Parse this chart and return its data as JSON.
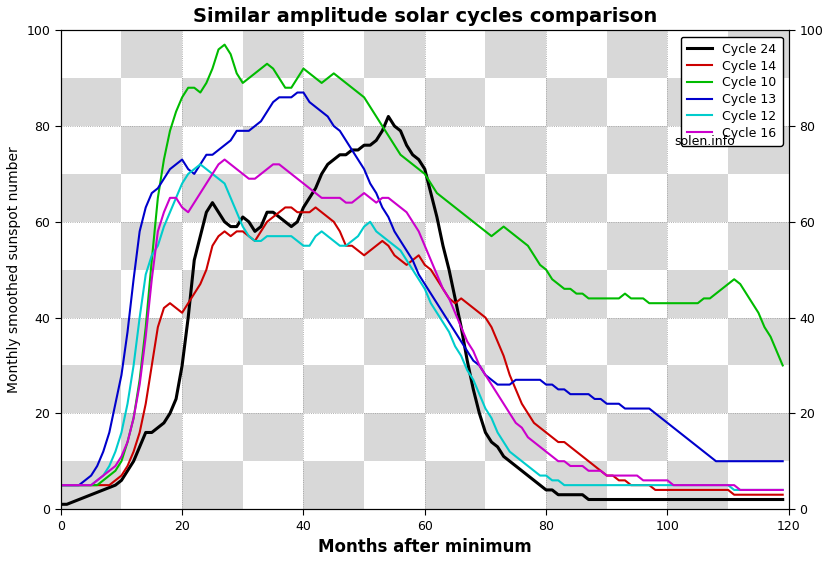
{
  "title": "Similar amplitude solar cycles comparison",
  "xlabel": "Months after minimum",
  "ylabel": "Monthly smoothed sunspot number",
  "xlim": [
    0,
    120
  ],
  "ylim": [
    0,
    100
  ],
  "xticks": [
    0,
    20,
    40,
    60,
    80,
    100,
    120
  ],
  "yticks": [
    0,
    20,
    40,
    60,
    80,
    100
  ],
  "watermark": "solen.info",
  "checker_light": "#ffffff",
  "checker_dark": "#d8d8d8",
  "grid_color": "#aaaaaa",
  "checker_nx": 12,
  "checker_ny": 10,
  "cycles": [
    {
      "name": "Cycle 24",
      "color": "#000000",
      "linewidth": 2.2,
      "data": [
        1,
        1,
        1.5,
        2,
        2.5,
        3,
        3.5,
        4,
        4.5,
        5,
        6,
        8,
        10,
        13,
        16,
        16,
        17,
        18,
        20,
        23,
        30,
        40,
        52,
        57,
        62,
        64,
        62,
        60,
        59,
        59,
        61,
        60,
        58,
        59,
        62,
        62,
        61,
        60,
        59,
        60,
        63,
        65,
        67,
        70,
        72,
        73,
        74,
        74,
        75,
        75,
        76,
        76,
        77,
        79,
        82,
        80,
        79,
        76,
        74,
        73,
        71,
        66,
        61,
        55,
        50,
        44,
        38,
        31,
        25,
        20,
        16,
        14,
        13,
        11,
        10,
        9,
        8,
        7,
        6,
        5,
        4,
        4,
        3,
        3,
        3,
        3,
        3,
        2,
        2,
        2,
        2,
        2,
        2,
        2,
        2,
        2,
        2,
        2,
        2,
        2,
        2,
        2,
        2,
        2,
        2,
        2,
        2,
        2,
        2,
        2,
        2,
        2,
        2,
        2,
        2,
        2,
        2,
        2,
        2,
        2
      ]
    },
    {
      "name": "Cycle 14",
      "color": "#cc0000",
      "linewidth": 1.5,
      "data": [
        5,
        5,
        5,
        5,
        5,
        5,
        5,
        5,
        5,
        6,
        7,
        9,
        12,
        16,
        22,
        30,
        38,
        42,
        43,
        42,
        41,
        43,
        45,
        47,
        50,
        55,
        57,
        58,
        57,
        58,
        58,
        57,
        56,
        58,
        60,
        61,
        62,
        63,
        63,
        62,
        62,
        62,
        63,
        62,
        61,
        60,
        58,
        55,
        55,
        54,
        53,
        54,
        55,
        56,
        55,
        53,
        52,
        51,
        52,
        53,
        51,
        50,
        48,
        46,
        44,
        43,
        44,
        43,
        42,
        41,
        40,
        38,
        35,
        32,
        28,
        25,
        22,
        20,
        18,
        17,
        16,
        15,
        14,
        14,
        13,
        12,
        11,
        10,
        9,
        8,
        7,
        7,
        6,
        6,
        5,
        5,
        5,
        5,
        4,
        4,
        4,
        4,
        4,
        4,
        4,
        4,
        4,
        4,
        4,
        4,
        4,
        3,
        3,
        3,
        3,
        3,
        3,
        3,
        3,
        3
      ]
    },
    {
      "name": "Cycle 10",
      "color": "#00bb00",
      "linewidth": 1.5,
      "data": [
        5,
        5,
        5,
        5,
        5,
        5,
        5,
        6,
        7,
        8,
        10,
        14,
        19,
        27,
        38,
        52,
        65,
        73,
        79,
        83,
        86,
        88,
        88,
        87,
        89,
        92,
        96,
        97,
        95,
        91,
        89,
        90,
        91,
        92,
        93,
        92,
        90,
        88,
        88,
        90,
        92,
        91,
        90,
        89,
        90,
        91,
        90,
        89,
        88,
        87,
        86,
        84,
        82,
        80,
        78,
        76,
        74,
        73,
        72,
        71,
        70,
        68,
        66,
        65,
        64,
        63,
        62,
        61,
        60,
        59,
        58,
        57,
        58,
        59,
        58,
        57,
        56,
        55,
        53,
        51,
        50,
        48,
        47,
        46,
        46,
        45,
        45,
        44,
        44,
        44,
        44,
        44,
        44,
        45,
        44,
        44,
        44,
        43,
        43,
        43,
        43,
        43,
        43,
        43,
        43,
        43,
        44,
        44,
        45,
        46,
        47,
        48,
        47,
        45,
        43,
        41,
        38,
        36,
        33,
        30
      ]
    },
    {
      "name": "Cycle 13",
      "color": "#0000cc",
      "linewidth": 1.5,
      "data": [
        5,
        5,
        5,
        5,
        6,
        7,
        9,
        12,
        16,
        22,
        28,
        37,
        48,
        58,
        63,
        66,
        67,
        69,
        71,
        72,
        73,
        71,
        70,
        72,
        74,
        74,
        75,
        76,
        77,
        79,
        79,
        79,
        80,
        81,
        83,
        85,
        86,
        86,
        86,
        87,
        87,
        85,
        84,
        83,
        82,
        80,
        79,
        77,
        75,
        73,
        71,
        68,
        66,
        63,
        61,
        58,
        56,
        54,
        52,
        49,
        47,
        45,
        43,
        41,
        39,
        37,
        35,
        33,
        31,
        30,
        28,
        27,
        26,
        26,
        26,
        27,
        27,
        27,
        27,
        27,
        26,
        26,
        25,
        25,
        24,
        24,
        24,
        24,
        23,
        23,
        22,
        22,
        22,
        21,
        21,
        21,
        21,
        21,
        20,
        19,
        18,
        17,
        16,
        15,
        14,
        13,
        12,
        11,
        10,
        10,
        10,
        10,
        10,
        10,
        10,
        10,
        10,
        10,
        10,
        10
      ]
    },
    {
      "name": "Cycle 12",
      "color": "#00cccc",
      "linewidth": 1.5,
      "data": [
        5,
        5,
        5,
        5,
        5,
        5,
        6,
        7,
        9,
        12,
        16,
        22,
        30,
        40,
        49,
        53,
        55,
        59,
        62,
        65,
        68,
        70,
        71,
        72,
        71,
        70,
        69,
        68,
        65,
        62,
        59,
        57,
        56,
        56,
        57,
        57,
        57,
        57,
        57,
        56,
        55,
        55,
        57,
        58,
        57,
        56,
        55,
        55,
        56,
        57,
        59,
        60,
        58,
        57,
        56,
        55,
        54,
        52,
        50,
        48,
        46,
        43,
        41,
        39,
        37,
        34,
        32,
        29,
        27,
        24,
        21,
        19,
        16,
        14,
        12,
        11,
        10,
        9,
        8,
        7,
        7,
        6,
        6,
        5,
        5,
        5,
        5,
        5,
        5,
        5,
        5,
        5,
        5,
        5,
        5,
        5,
        5,
        5,
        5,
        5,
        5,
        5,
        5,
        5,
        5,
        5,
        5,
        5,
        5,
        5,
        5,
        4,
        4,
        4,
        4,
        4,
        4,
        4,
        4,
        4
      ]
    },
    {
      "name": "Cycle 16",
      "color": "#cc00cc",
      "linewidth": 1.5,
      "data": [
        5,
        5,
        5,
        5,
        5,
        5,
        6,
        7,
        8,
        9,
        11,
        14,
        19,
        26,
        36,
        48,
        58,
        62,
        65,
        65,
        63,
        62,
        64,
        66,
        68,
        70,
        72,
        73,
        72,
        71,
        70,
        69,
        69,
        70,
        71,
        72,
        72,
        71,
        70,
        69,
        68,
        67,
        66,
        65,
        65,
        65,
        65,
        64,
        64,
        65,
        66,
        65,
        64,
        65,
        65,
        64,
        63,
        62,
        60,
        58,
        55,
        52,
        49,
        46,
        44,
        41,
        38,
        35,
        33,
        30,
        28,
        26,
        24,
        22,
        20,
        18,
        17,
        15,
        14,
        13,
        12,
        11,
        10,
        10,
        9,
        9,
        9,
        8,
        8,
        8,
        7,
        7,
        7,
        7,
        7,
        7,
        6,
        6,
        6,
        6,
        6,
        5,
        5,
        5,
        5,
        5,
        5,
        5,
        5,
        5,
        5,
        5,
        4,
        4,
        4,
        4,
        4,
        4,
        4,
        4
      ]
    }
  ]
}
